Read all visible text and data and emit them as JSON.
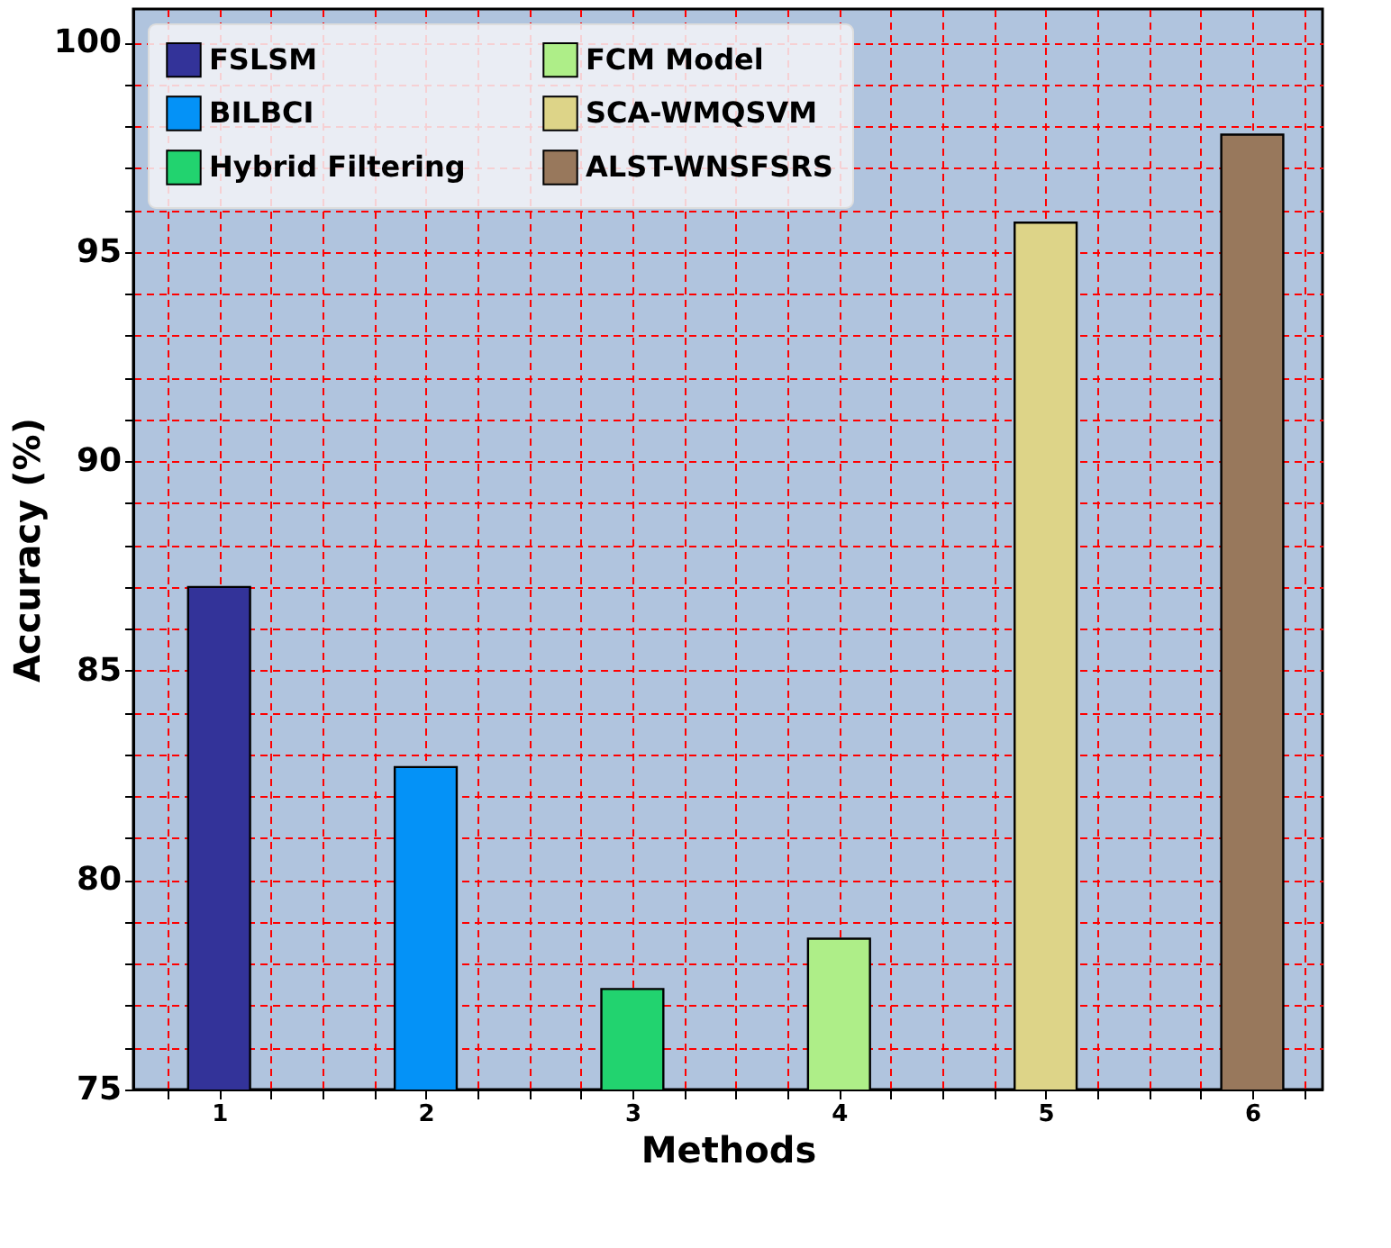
{
  "chart_data": {
    "type": "bar",
    "xlabel": "Methods",
    "ylabel": "Accuracy (%)",
    "series": [
      {
        "name": "FSLSM",
        "color": "#333399",
        "x": [
          1
        ],
        "values": [
          87.0
        ]
      },
      {
        "name": "BILBCI",
        "color": "#0492f7",
        "x": [
          2
        ],
        "values": [
          82.7
        ]
      },
      {
        "name": "Hybrid Filtering",
        "color": "#22d36f",
        "x": [
          3
        ],
        "values": [
          77.4
        ]
      },
      {
        "name": "FCM Model",
        "color": "#aeee88",
        "x": [
          4
        ],
        "values": [
          78.6
        ]
      },
      {
        "name": "SCA-WMQSVM",
        "color": "#ddd488",
        "x": [
          5
        ],
        "values": [
          95.7
        ]
      },
      {
        "name": "ALST-WNSFSRS",
        "color": "#98785c",
        "x": [
          6
        ],
        "values": [
          97.8
        ]
      }
    ],
    "xlim": [
      0.585,
      6.34
    ],
    "xticks": [
      {
        "value": 0.75,
        "label": null
      },
      1,
      {
        "value": 1.25,
        "label": null
      },
      {
        "value": 1.5,
        "label": null
      },
      {
        "value": 1.75,
        "label": null
      },
      2,
      {
        "value": 2.25,
        "label": null
      },
      {
        "value": 2.5,
        "label": null
      },
      {
        "value": 2.75,
        "label": null
      },
      3,
      {
        "value": 3.25,
        "label": null
      },
      {
        "value": 3.5,
        "label": null
      },
      {
        "value": 3.75,
        "label": null
      },
      4,
      {
        "value": 4.25,
        "label": null
      },
      {
        "value": 4.5,
        "label": null
      },
      {
        "value": 4.75,
        "label": null
      },
      5,
      {
        "value": 5.25,
        "label": null
      },
      {
        "value": 5.5,
        "label": null
      },
      {
        "value": 5.75,
        "label": null
      },
      6,
      {
        "value": 6.25,
        "label": null
      }
    ],
    "ylim": [
      75,
      100.8
    ],
    "yticks": [
      75,
      {
        "value": 76,
        "label": null
      },
      {
        "value": 77,
        "label": null
      },
      {
        "value": 78,
        "label": null
      },
      {
        "value": 79,
        "label": null
      },
      80,
      {
        "value": 81,
        "label": null
      },
      {
        "value": 82,
        "label": null
      },
      {
        "value": 83,
        "label": null
      },
      {
        "value": 84,
        "label": null
      },
      85,
      {
        "value": 86,
        "label": null
      },
      {
        "value": 87,
        "label": null
      },
      {
        "value": 88,
        "label": null
      },
      {
        "value": 89,
        "label": null
      },
      90,
      {
        "value": 91,
        "label": null
      },
      {
        "value": 92,
        "label": null
      },
      {
        "value": 93,
        "label": null
      },
      {
        "value": 94,
        "label": null
      },
      95,
      {
        "value": 96,
        "label": null
      },
      {
        "value": 97,
        "label": null
      },
      {
        "value": 98,
        "label": null
      },
      {
        "value": 99,
        "label": null
      },
      100
    ],
    "grid": true,
    "legend": "top left"
  }
}
